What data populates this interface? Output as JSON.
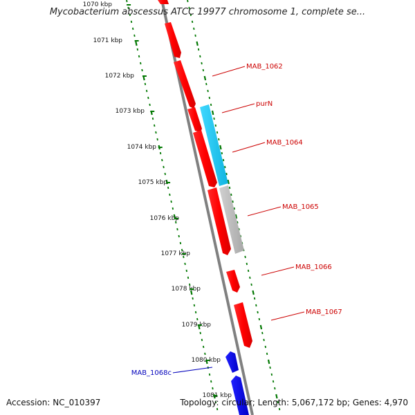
{
  "title": "Mycobacterium abscessus ATCC 19977 chromosome 1, complete se...",
  "accession": "Accession: NC_010397",
  "topology": "Topology: circular; Length: 5,067,172 bp; Genes: 4,970",
  "colors": {
    "forward_gene": "#ff0000",
    "reverse_gene": "#0000ee",
    "rna_gene": "#18c8f0",
    "pseudo_gene": "#bdbdbd",
    "backbone": "#808080",
    "tick": "#007700",
    "forward_label": "#cc0000",
    "reverse_label": "#0000bb"
  },
  "kbp_labels": [
    "1070 kbp",
    "1071 kbp",
    "1072 kbp",
    "1073 kbp",
    "1074 kbp",
    "1075 kbp",
    "1076 kbp",
    "1077 kbp",
    "1078 kbp",
    "1079 kbp",
    "1080 kbp",
    "1081 kbp"
  ],
  "gene_labels": [
    {
      "name": "MAB_1062",
      "strand": "forward"
    },
    {
      "name": "purN",
      "strand": "forward"
    },
    {
      "name": "MAB_1064",
      "strand": "forward"
    },
    {
      "name": "MAB_1065",
      "strand": "forward"
    },
    {
      "name": "MAB_1066",
      "strand": "forward"
    },
    {
      "name": "MAB_1067",
      "strand": "forward"
    },
    {
      "name": "MAB_1068c",
      "strand": "reverse"
    }
  ]
}
